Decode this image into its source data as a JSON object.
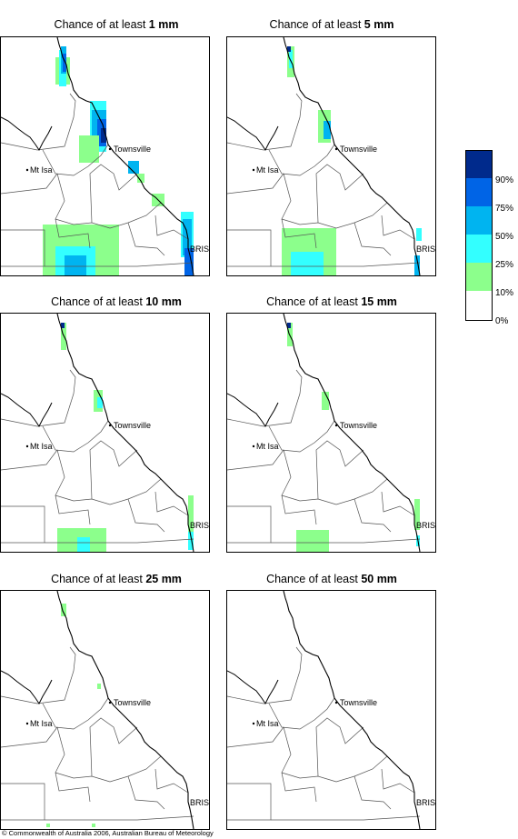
{
  "panels": [
    {
      "title_prefix": "Chance of at least ",
      "amount": "1 mm"
    },
    {
      "title_prefix": "Chance of at least ",
      "amount": "5 mm"
    },
    {
      "title_prefix": "Chance of at least ",
      "amount": "10 mm"
    },
    {
      "title_prefix": "Chance of at least ",
      "amount": "15 mm"
    },
    {
      "title_prefix": "Chance of at least ",
      "amount": "25 mm"
    },
    {
      "title_prefix": "Chance of at least ",
      "amount": "50 mm"
    }
  ],
  "places": {
    "townsville": "Townsville",
    "mt_isa": "Mt Isa",
    "brisbane": "BRIS"
  },
  "legend": {
    "ticks": [
      "90%",
      "75%",
      "50%",
      "25%",
      "10%",
      "0%"
    ],
    "colors": [
      "#002a8c",
      "#0064e6",
      "#00b4f0",
      "#33ffff",
      "#8cff8c",
      "#ffffff"
    ]
  },
  "copyright": "© Commonwealth of Australia 2006, Australian Bureau of Meteorology"
}
